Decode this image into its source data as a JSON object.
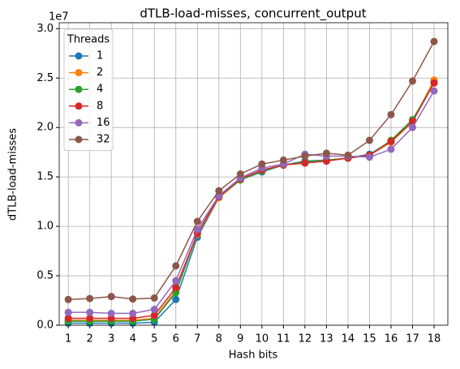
{
  "chart_data": {
    "type": "line",
    "title": "dTLB-load-misses, concurrent_output",
    "x_label": "Hash bits",
    "y_label": "dTLB-load-misses",
    "y_offset_label": "1e7",
    "legend_title": "Threads",
    "legend": "upper left",
    "grid": true,
    "x": [
      1,
      2,
      3,
      4,
      5,
      6,
      7,
      8,
      9,
      10,
      11,
      12,
      13,
      14,
      15,
      16,
      17,
      18
    ],
    "xlim": [
      0.58,
      18.64
    ],
    "xticks": [
      1,
      2,
      3,
      4,
      5,
      6,
      7,
      8,
      9,
      10,
      11,
      12,
      13,
      14,
      15,
      16,
      17,
      18
    ],
    "ylim": [
      0,
      3.06
    ],
    "yticks": [
      {
        "value": 0,
        "label": "0.0"
      },
      0.5,
      {
        "value": 1,
        "label": "1.0"
      },
      1.5,
      {
        "value": 2,
        "label": "2.0"
      },
      2.5,
      {
        "value": 3,
        "label": "3.0"
      }
    ],
    "series": [
      {
        "name": "1",
        "color": "#1f77b4",
        "values": [
          0.02,
          0.02,
          0.02,
          0.02,
          0.03,
          0.26,
          0.89,
          1.29,
          1.47,
          1.55,
          1.62,
          1.66,
          1.67,
          1.69,
          1.73,
          1.86,
          2.06,
          2.47
        ]
      },
      {
        "name": "2",
        "color": "#ff7f0e",
        "values": [
          0.05,
          0.05,
          0.05,
          0.05,
          0.07,
          0.35,
          0.92,
          1.29,
          1.47,
          1.56,
          1.62,
          1.65,
          1.67,
          1.69,
          1.72,
          1.85,
          2.06,
          2.48
        ]
      },
      {
        "name": "4",
        "color": "#2ca02c",
        "values": [
          0.04,
          0.04,
          0.04,
          0.04,
          0.06,
          0.33,
          0.93,
          1.3,
          1.47,
          1.56,
          1.62,
          1.65,
          1.67,
          1.69,
          1.72,
          1.87,
          2.08,
          2.45
        ]
      },
      {
        "name": "8",
        "color": "#d62728",
        "values": [
          0.07,
          0.07,
          0.07,
          0.07,
          0.1,
          0.38,
          0.93,
          1.3,
          1.48,
          1.57,
          1.62,
          1.64,
          1.66,
          1.69,
          1.72,
          1.86,
          2.06,
          2.45
        ]
      },
      {
        "name": "16",
        "color": "#9467bd",
        "values": [
          0.13,
          0.13,
          0.12,
          0.12,
          0.16,
          0.45,
          0.97,
          1.31,
          1.49,
          1.59,
          1.63,
          1.73,
          1.71,
          1.71,
          1.7,
          1.78,
          2.0,
          2.37
        ]
      },
      {
        "name": "32",
        "color": "#8c564b",
        "values": [
          0.26,
          0.27,
          0.29,
          0.265,
          0.275,
          0.6,
          1.05,
          1.36,
          1.53,
          1.63,
          1.67,
          1.71,
          1.74,
          1.72,
          1.87,
          2.13,
          2.47,
          2.87
        ]
      }
    ]
  }
}
